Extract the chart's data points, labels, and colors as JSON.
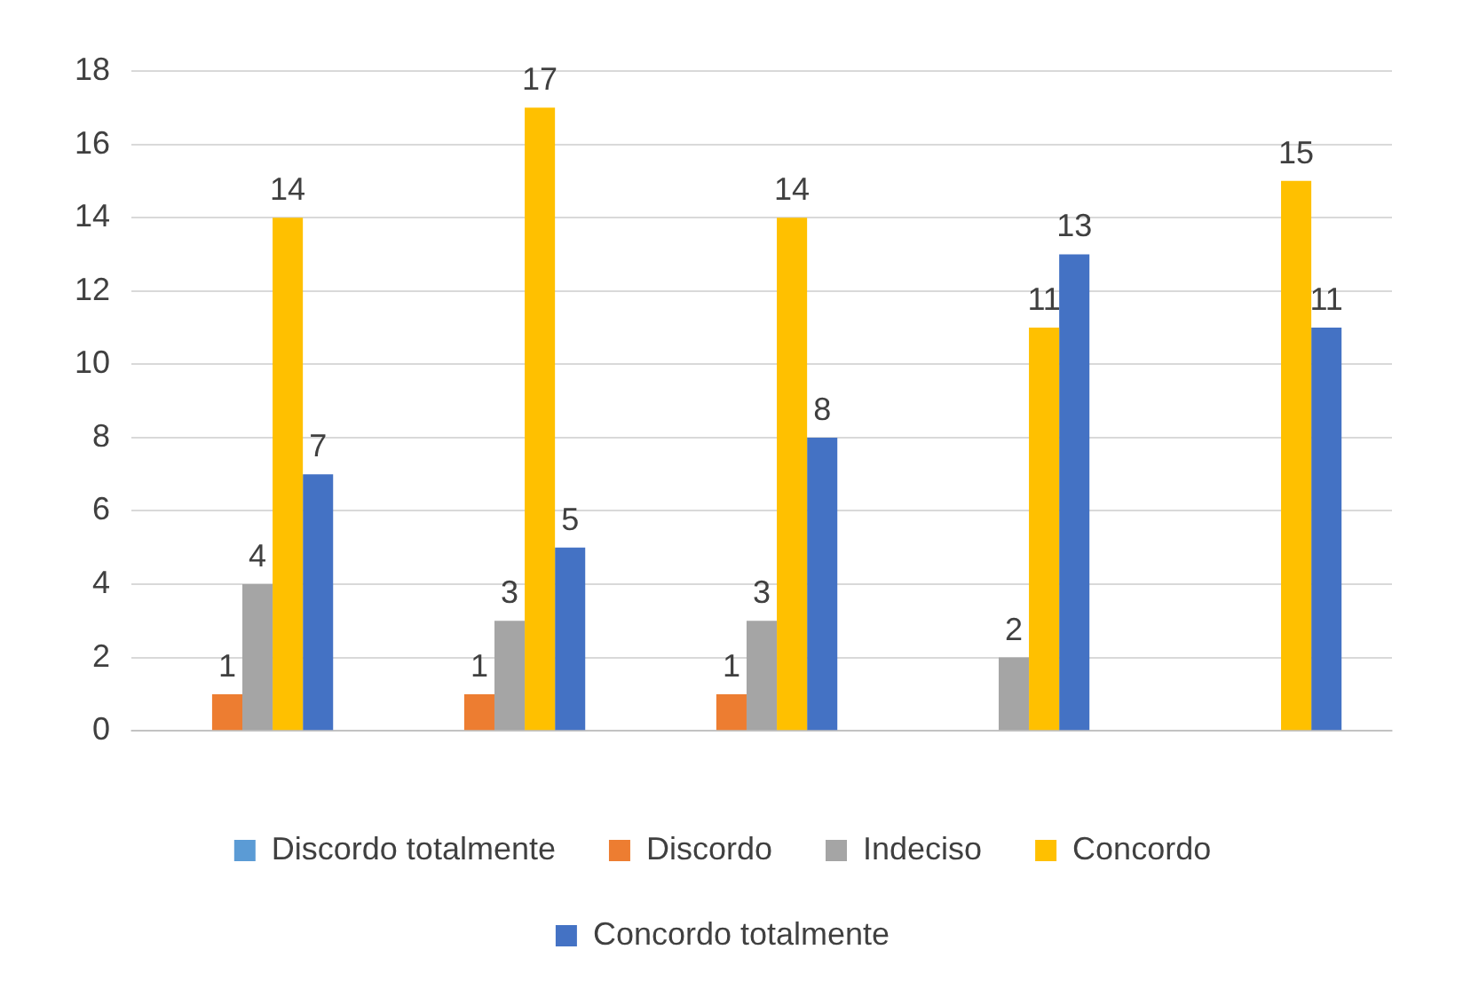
{
  "chart_data": {
    "type": "bar",
    "categories": [
      null,
      null,
      null,
      null,
      null
    ],
    "series": [
      {
        "name": "Discordo totalmente",
        "color": "#5b9bd5",
        "values": [
          null,
          null,
          null,
          null,
          null
        ]
      },
      {
        "name": "Discordo",
        "color": "#ed7d31",
        "values": [
          1,
          1,
          1,
          null,
          null
        ]
      },
      {
        "name": "Indeciso",
        "color": "#a5a5a5",
        "values": [
          4,
          3,
          3,
          2,
          null
        ]
      },
      {
        "name": "Concordo",
        "color": "#ffc000",
        "values": [
          14,
          17,
          14,
          11,
          15
        ]
      },
      {
        "name": "Concordo totalmente",
        "color": "#4472c4",
        "values": [
          7,
          5,
          8,
          13,
          11
        ]
      }
    ],
    "ylim": [
      0,
      18
    ],
    "yticks": [
      0,
      2,
      4,
      6,
      8,
      10,
      12,
      14,
      16,
      18
    ],
    "grid": "y",
    "legend": "bottom",
    "data_labels": true
  }
}
